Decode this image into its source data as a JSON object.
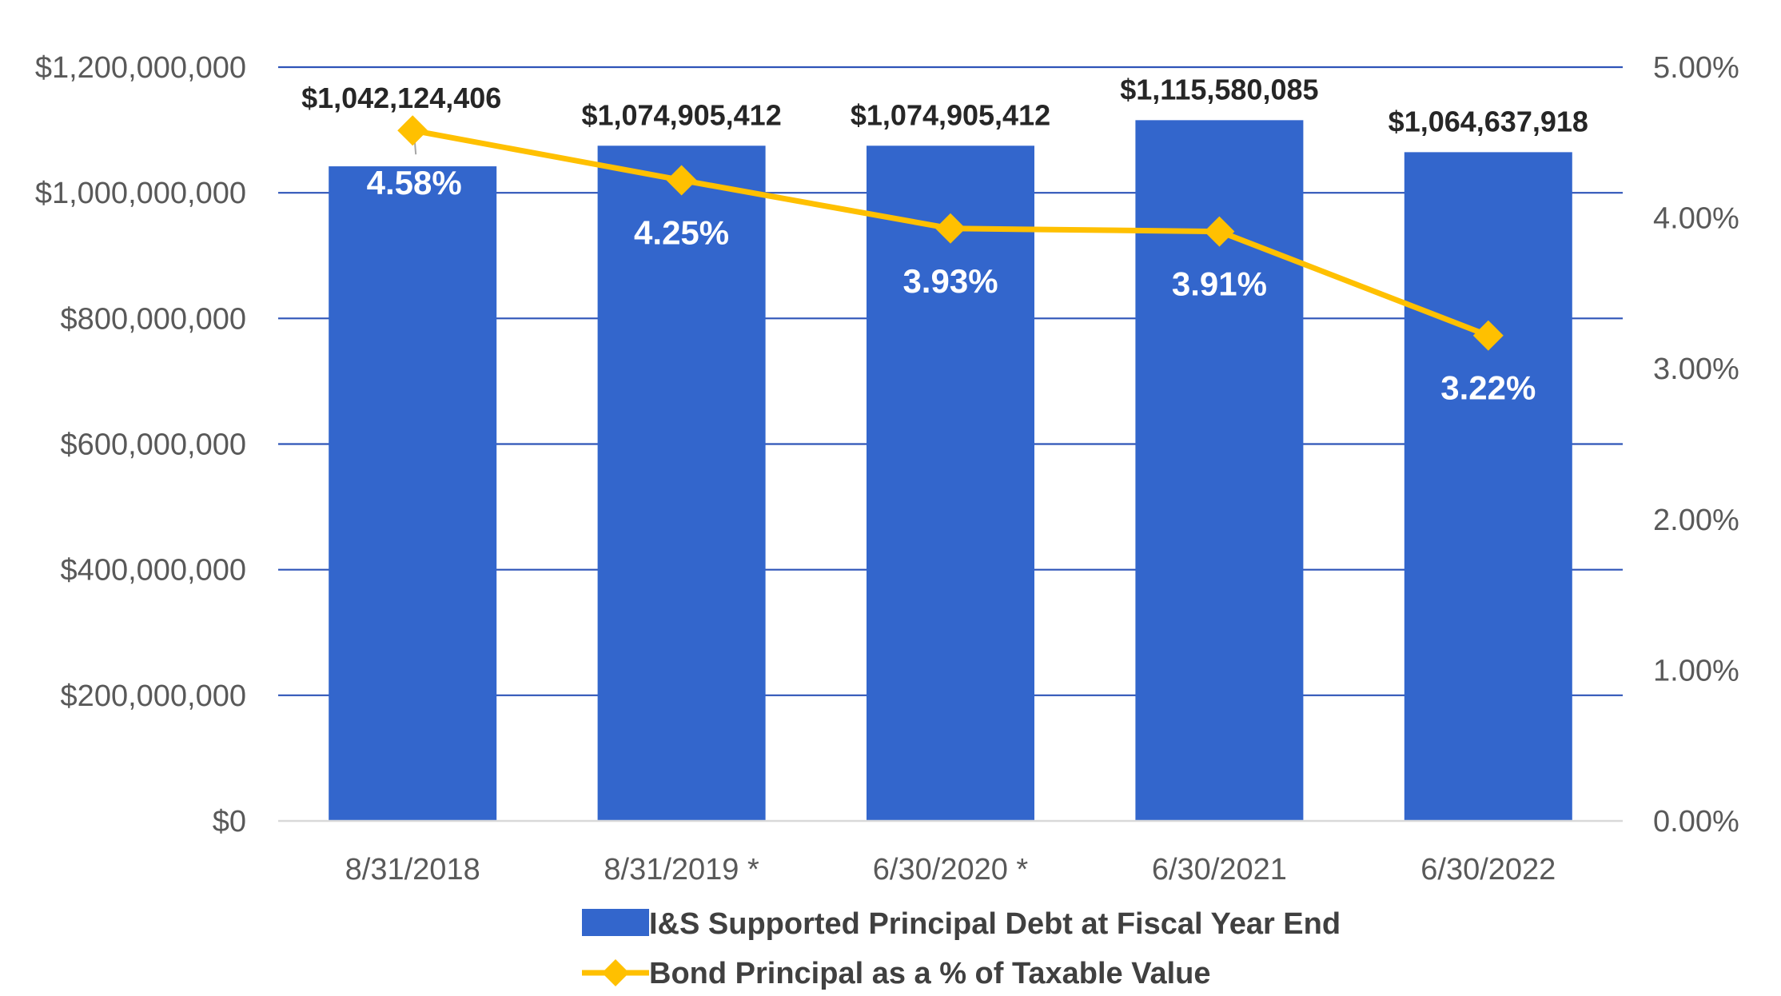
{
  "chart_data": {
    "type": "bar",
    "categories": [
      "8/31/2018",
      "8/31/2019 *",
      "6/30/2020 *",
      "6/30/2021",
      "6/30/2022"
    ],
    "series": [
      {
        "name": "I&S Supported Principal Debt at Fiscal Year End",
        "type": "bar",
        "axis": "left",
        "color": "#3366CC",
        "values": [
          1042124406,
          1074905412,
          1074905412,
          1115580085,
          1064637918
        ],
        "labels": [
          "$1,042,124,406",
          "$1,074,905,412",
          "$1,074,905,412",
          "$1,115,580,085",
          "$1,064,637,918"
        ]
      },
      {
        "name": "Bond Principal as a % of Taxable Value",
        "type": "line",
        "axis": "right",
        "color": "#FFC000",
        "marker": "diamond",
        "values": [
          4.58,
          4.25,
          3.93,
          3.91,
          3.22
        ],
        "labels": [
          "4.58%",
          "4.25%",
          "3.93%",
          "3.91%",
          "3.22%"
        ]
      }
    ],
    "y_left": {
      "lim": [
        0,
        1200000000
      ],
      "ticks": [
        0,
        200000000,
        400000000,
        600000000,
        800000000,
        1000000000,
        1200000000
      ],
      "tick_labels": [
        "$0",
        "$200,000,000",
        "$400,000,000",
        "$600,000,000",
        "$800,000,000",
        "$1,000,000,000",
        "$1,200,000,000"
      ]
    },
    "y_right": {
      "lim": [
        0,
        5
      ],
      "ticks": [
        0,
        1,
        2,
        3,
        4,
        5
      ],
      "tick_labels": [
        "0.00%",
        "1.00%",
        "2.00%",
        "3.00%",
        "4.00%",
        "5.00%"
      ]
    },
    "grid": true,
    "gridline_color": "#2E54B8",
    "legend_position": "bottom",
    "title": "",
    "xlabel": "",
    "ylabel": ""
  }
}
